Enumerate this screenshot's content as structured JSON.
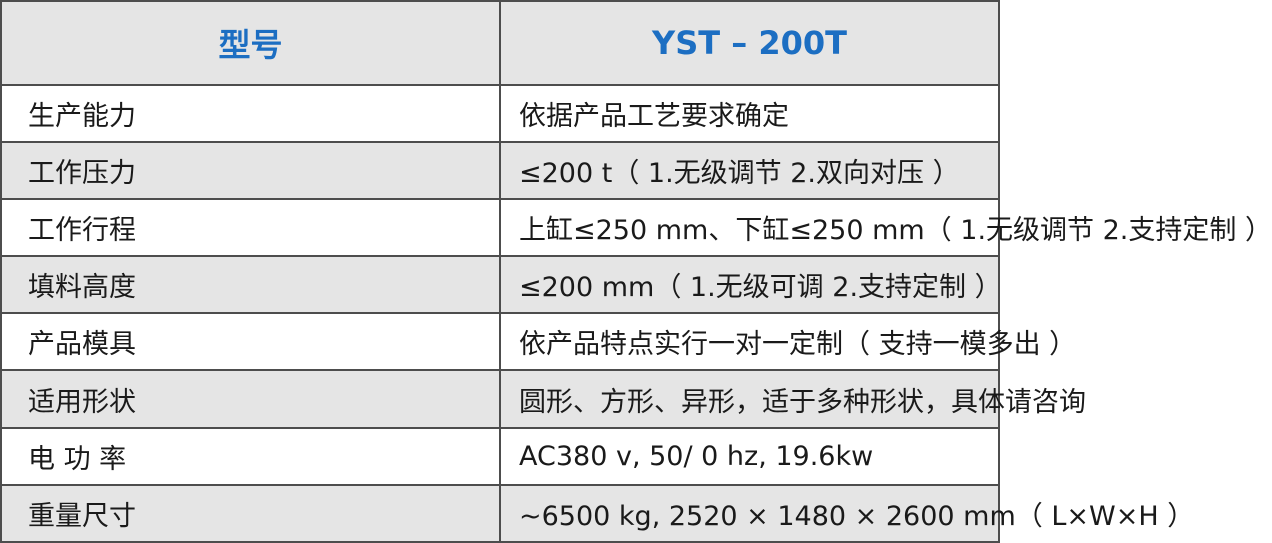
{
  "table": {
    "header": [
      "型号",
      "YST – 200T"
    ],
    "rows": [
      [
        "生产能力",
        "依据产品工艺要求确定"
      ],
      [
        "工作压力",
        "≤200 t（ 1.无级调节  2.双向对压 ）"
      ],
      [
        "工作行程",
        "上缸≤250 mm、下缸≤250 mm（ 1.无级调节 2.支持定制 ）"
      ],
      [
        "填料高度",
        "≤200 mm（ 1.无级可调  2.支持定制 ）"
      ],
      [
        "产品模具",
        "依产品特点实行一对一定制（ 支持一模多出 ）"
      ],
      [
        "适用形状",
        "圆形、方形、异形，适于多种形状，具体请咨询"
      ],
      [
        "电 功 率",
        "AC380 v, 50/  0 hz, 19.6kw"
      ],
      [
        "重量尺寸",
        "~6500 kg, 2520 × 1480 × 2600 mm（ L×W×H ）"
      ]
    ]
  }
}
